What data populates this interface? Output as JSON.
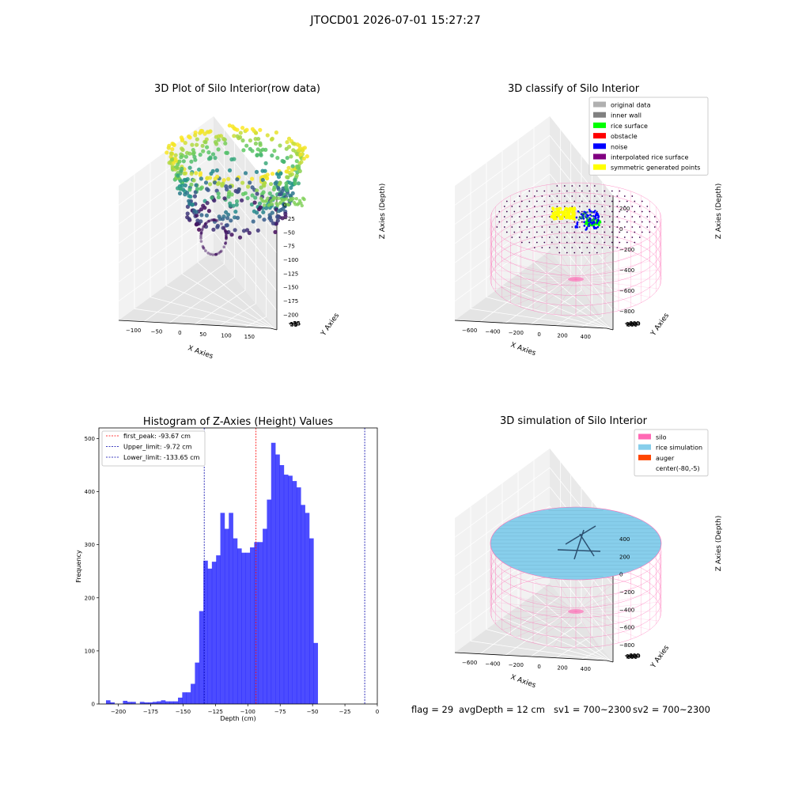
{
  "suptitle": "JTOCD01 2026-07-01 15:27:27",
  "footer": {
    "flag": "flag = 29",
    "avg_depth": "avgDepth = 12 cm",
    "sv1": "sv1 = 700~2300",
    "sv2": "sv2 = 700~2300"
  },
  "chart_data": [
    {
      "type": "scatter",
      "title": "3D Plot of Silo Interior(row data)",
      "xlabel": "X Axies",
      "ylabel": "Y Axies",
      "zlabel": "Z Axies (Depth)",
      "x_ticks": [
        "−100",
        "−50",
        "0",
        "50",
        "100",
        "150"
      ],
      "y_ticks": [
        "−75",
        "−50",
        "−25",
        "0",
        "25",
        "50",
        "75"
      ],
      "z_ticks": [
        "0",
        "−25",
        "−50",
        "−75",
        "−100",
        "−125",
        "−150",
        "−175",
        "−200"
      ],
      "xlim": [
        -100,
        160
      ],
      "ylim": [
        -80,
        85
      ],
      "zlim": [
        -210,
        0
      ],
      "colormap": "viridis",
      "grid": true
    },
    {
      "type": "scatter",
      "title": "3D classify of Silo Interior",
      "xlabel": "X Axies",
      "ylabel": "Y Axies",
      "zlabel": "Z Axies (Depth)",
      "x_ticks": [
        "−600",
        "−400",
        "−200",
        "0",
        "200",
        "400"
      ],
      "y_ticks": [
        "−600",
        "−400",
        "−200",
        "0",
        "200",
        "400",
        "600"
      ],
      "z_ticks": [
        "200",
        "0",
        "−200",
        "−400",
        "−600",
        "−800"
      ],
      "legend_position": "top-right",
      "legend": [
        {
          "label": "original data",
          "color": "#b0b0b0"
        },
        {
          "label": "inner wall",
          "color": "#808080"
        },
        {
          "label": "rice surface",
          "color": "#00ff00"
        },
        {
          "label": "obstacle",
          "color": "#ff0000"
        },
        {
          "label": "noise",
          "color": "#0000ff"
        },
        {
          "label": "interpolated rice surface",
          "color": "#800080"
        },
        {
          "label": "symmetric generated points",
          "color": "#ffff00"
        }
      ],
      "grid": true
    },
    {
      "type": "bar",
      "title": "Histogram of Z-Axies (Height) Values",
      "xlabel": "Depth (cm)",
      "ylabel": "Frequency",
      "xlim": [
        -215,
        0
      ],
      "ylim": [
        0,
        520
      ],
      "x_ticks": [
        -200,
        -175,
        -150,
        -125,
        -100,
        -75,
        -50,
        -25,
        0
      ],
      "y_ticks": [
        0,
        100,
        200,
        300,
        400,
        500
      ],
      "bin_start": -209.5,
      "bin_width": 3.27,
      "values": [
        7,
        3,
        0,
        0,
        6,
        4,
        4,
        0,
        4,
        3,
        3,
        4,
        5,
        7,
        5,
        5,
        5,
        12,
        22,
        22,
        38,
        78,
        175,
        270,
        255,
        268,
        280,
        360,
        330,
        360,
        312,
        293,
        285,
        285,
        295,
        305,
        305,
        330,
        385,
        492,
        470,
        450,
        432,
        430,
        420,
        408,
        375,
        360,
        312,
        115
      ],
      "bar_color": "#0000ff",
      "bar_opacity": 0.7,
      "legend_position": "top-left",
      "vlines": [
        {
          "label": "first_peak: -93.67 cm",
          "x": -93.67,
          "color": "#ff0000"
        },
        {
          "label": "Upper_limit: -9.72 cm",
          "x": -9.72,
          "color": "#0000aa"
        },
        {
          "label": "Lower_limit: -133.65 cm",
          "x": -133.65,
          "color": "#0000aa"
        }
      ]
    },
    {
      "type": "area",
      "title": "3D simulation of Silo Interior",
      "xlabel": "X Axies",
      "ylabel": "Y Axies",
      "zlabel": "Z Axies (Depth)",
      "x_ticks": [
        "−600",
        "−400",
        "−200",
        "0",
        "200",
        "400"
      ],
      "y_ticks": [
        "−600",
        "−400",
        "−200",
        "0",
        "200",
        "400",
        "600"
      ],
      "z_ticks": [
        "400",
        "200",
        "0",
        "−200",
        "−400",
        "−600",
        "−800"
      ],
      "legend_position": "top-right",
      "legend": [
        {
          "label": "silo",
          "color": "#ff69b4"
        },
        {
          "label": "rice simulation",
          "color": "#87ceeb"
        },
        {
          "label": "auger",
          "color": "#ff4500"
        },
        {
          "label": "center(-80,-5)",
          "color": ""
        }
      ],
      "grid": true
    }
  ]
}
